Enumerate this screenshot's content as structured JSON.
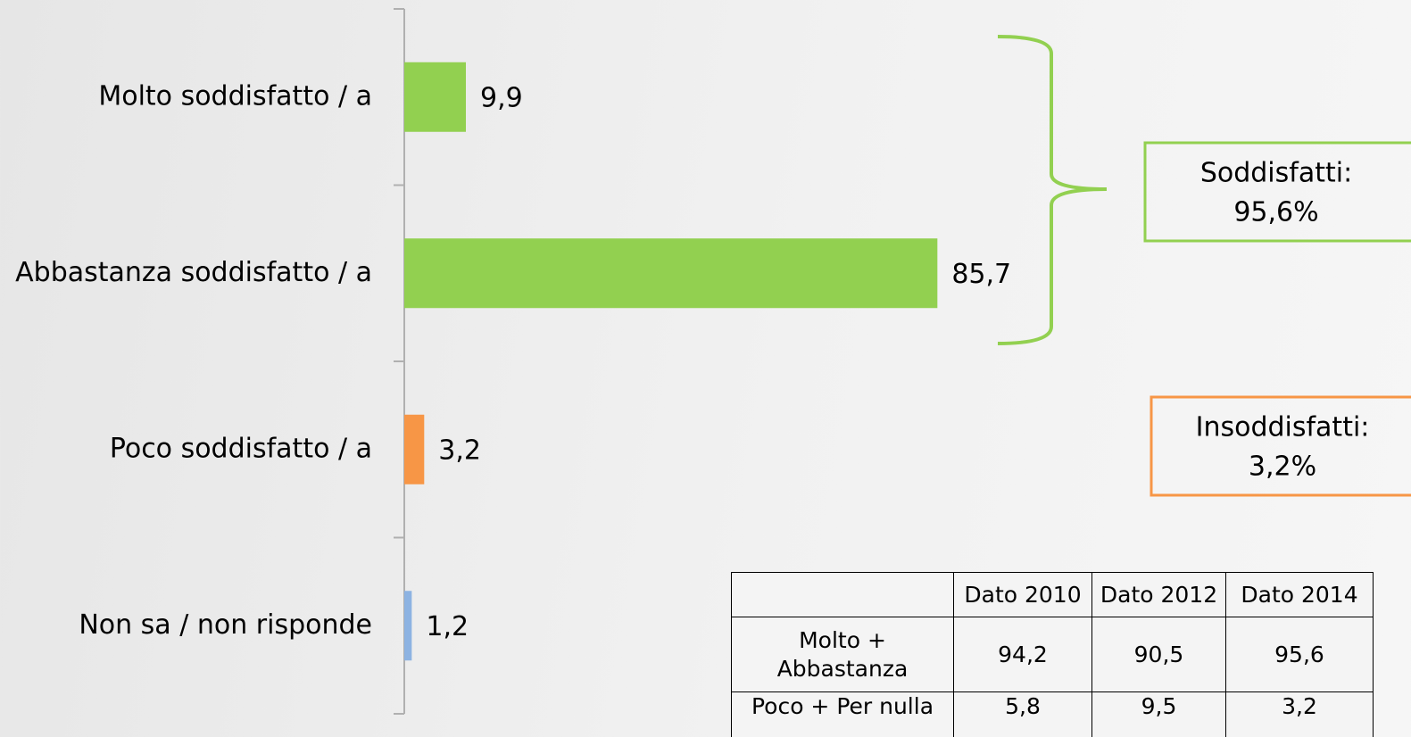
{
  "chart_data": {
    "type": "hbar",
    "categories": [
      "Molto soddisfatto / a",
      "Abbastanza soddisfatto / a",
      "Poco soddisfatto / a",
      "Non sa / non risponde"
    ],
    "values": [
      9.9,
      85.7,
      3.2,
      1.2
    ],
    "value_labels": [
      "9,9",
      "85,7",
      "3,2",
      "1,2"
    ],
    "colors": [
      "#92d050",
      "#92d050",
      "#f79646",
      "#8db3e2"
    ]
  },
  "annotations": [
    {
      "lines": [
        "Soddisfatti:",
        "95,6%"
      ],
      "color": "#92d050"
    },
    {
      "lines": [
        "Insoddisfatti:",
        "3,2%"
      ],
      "color": "#f79646"
    }
  ],
  "table": {
    "columns": [
      "Dato 2010",
      "Dato 2012",
      "Dato 2014"
    ],
    "rows": [
      {
        "label": "Molto + Abbastanza",
        "values": [
          "94,2",
          "90,5",
          "95,6"
        ]
      },
      {
        "label": "Poco + Per nulla",
        "values": [
          "5,8",
          "9,5",
          "3,2"
        ]
      }
    ]
  }
}
